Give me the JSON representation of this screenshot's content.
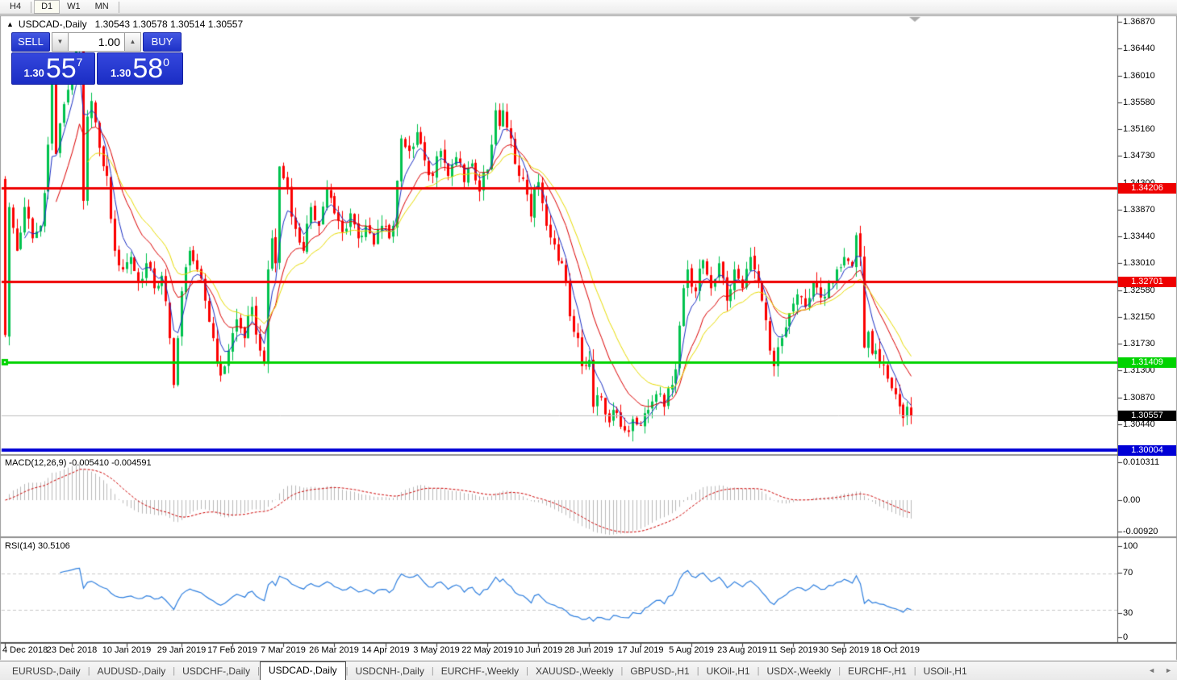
{
  "toolbar": {
    "timeframes": [
      {
        "label": "H4",
        "active": false
      },
      {
        "label": "D1",
        "active": true
      },
      {
        "label": "W1",
        "active": false
      },
      {
        "label": "MN",
        "active": false
      }
    ]
  },
  "chart": {
    "title_symbol": "USDCAD-,Daily",
    "ohlc": "1.30543 1.30578 1.30514 1.30557",
    "trade_panel": {
      "sell_label": "SELL",
      "buy_label": "BUY",
      "volume": "1.00",
      "bid_small": "1.30",
      "bid_big": "55",
      "bid_sup": "7",
      "ask_small": "1.30",
      "ask_big": "58",
      "ask_sup": "0"
    }
  },
  "chart_data": {
    "type": "candlestick",
    "title": "USDCAD-,Daily",
    "bars": 232,
    "first_open": 1.3435,
    "close_anchors": [
      [
        0,
        1.3185
      ],
      [
        1,
        1.339
      ],
      [
        3,
        1.332
      ],
      [
        5,
        1.339
      ],
      [
        7,
        1.334
      ],
      [
        9,
        1.336
      ],
      [
        11,
        1.349
      ],
      [
        12,
        1.359
      ],
      [
        13,
        1.3475
      ],
      [
        15,
        1.3555
      ],
      [
        17,
        1.3605
      ],
      [
        19,
        1.3655
      ],
      [
        20,
        1.34
      ],
      [
        21,
        1.3535
      ],
      [
        22,
        1.356
      ],
      [
        24,
        1.3485
      ],
      [
        26,
        1.344
      ],
      [
        28,
        1.332
      ],
      [
        30,
        1.329
      ],
      [
        32,
        1.331
      ],
      [
        34,
        1.327
      ],
      [
        36,
        1.33
      ],
      [
        38,
        1.326
      ],
      [
        40,
        1.328
      ],
      [
        42,
        1.318
      ],
      [
        43,
        1.3105
      ],
      [
        45,
        1.3255
      ],
      [
        47,
        1.332
      ],
      [
        49,
        1.329
      ],
      [
        51,
        1.324
      ],
      [
        53,
        1.318
      ],
      [
        55,
        1.312
      ],
      [
        57,
        1.316
      ],
      [
        59,
        1.321
      ],
      [
        61,
        1.318
      ],
      [
        63,
        1.323
      ],
      [
        65,
        1.316
      ],
      [
        66,
        1.314
      ],
      [
        67,
        1.329
      ],
      [
        68,
        1.334
      ],
      [
        69,
        1.33
      ],
      [
        70,
        1.3455
      ],
      [
        72,
        1.342
      ],
      [
        74,
        1.3355
      ],
      [
        76,
        1.332
      ],
      [
        78,
        1.339
      ],
      [
        80,
        1.336
      ],
      [
        82,
        1.342
      ],
      [
        84,
        1.338
      ],
      [
        86,
        1.335
      ],
      [
        88,
        1.338
      ],
      [
        90,
        1.334
      ],
      [
        92,
        1.336
      ],
      [
        94,
        1.333
      ],
      [
        96,
        1.336
      ],
      [
        98,
        1.334
      ],
      [
        99,
        1.336
      ],
      [
        101,
        1.35
      ],
      [
        103,
        1.348
      ],
      [
        105,
        1.351
      ],
      [
        107,
        1.3465
      ],
      [
        109,
        1.344
      ],
      [
        111,
        1.348
      ],
      [
        113,
        1.344
      ],
      [
        115,
        1.347
      ],
      [
        117,
        1.343
      ],
      [
        119,
        1.346
      ],
      [
        121,
        1.3415
      ],
      [
        123,
        1.345
      ],
      [
        124,
        1.349
      ],
      [
        125,
        1.3545
      ],
      [
        126,
        1.352
      ],
      [
        127,
        1.3545
      ],
      [
        129,
        1.35
      ],
      [
        131,
        1.344
      ],
      [
        133,
        1.341
      ],
      [
        134,
        1.3375
      ],
      [
        135,
        1.342
      ],
      [
        136,
        1.343
      ],
      [
        138,
        1.336
      ],
      [
        140,
        1.333
      ],
      [
        142,
        1.33
      ],
      [
        144,
        1.3215
      ],
      [
        146,
        1.318
      ],
      [
        147,
        1.3135
      ],
      [
        149,
        1.3145
      ],
      [
        150,
        1.307
      ],
      [
        152,
        1.3085
      ],
      [
        154,
        1.3045
      ],
      [
        156,
        1.306
      ],
      [
        158,
        1.3032
      ],
      [
        160,
        1.305
      ],
      [
        162,
        1.304
      ],
      [
        164,
        1.3065
      ],
      [
        166,
        1.309
      ],
      [
        168,
        1.307
      ],
      [
        170,
        1.3105
      ],
      [
        171,
        1.313
      ],
      [
        172,
        1.32
      ],
      [
        173,
        1.326
      ],
      [
        174,
        1.329
      ],
      [
        176,
        1.3255
      ],
      [
        178,
        1.3305
      ],
      [
        180,
        1.326
      ],
      [
        182,
        1.33
      ],
      [
        184,
        1.324
      ],
      [
        186,
        1.329
      ],
      [
        188,
        1.326
      ],
      [
        190,
        1.331
      ],
      [
        191,
        1.329
      ],
      [
        193,
        1.324
      ],
      [
        195,
        1.316
      ],
      [
        196,
        1.3135
      ],
      [
        198,
        1.318
      ],
      [
        200,
        1.322
      ],
      [
        202,
        1.325
      ],
      [
        204,
        1.323
      ],
      [
        206,
        1.327
      ],
      [
        208,
        1.3245
      ],
      [
        210,
        1.327
      ],
      [
        212,
        1.329
      ],
      [
        214,
        1.331
      ],
      [
        216,
        1.3295
      ],
      [
        217,
        1.3345
      ],
      [
        218,
        1.331
      ],
      [
        219,
        1.3165
      ],
      [
        220,
        1.319
      ],
      [
        221,
        1.3155
      ],
      [
        223,
        1.314
      ],
      [
        225,
        1.3115
      ],
      [
        227,
        1.309
      ],
      [
        229,
        1.3052
      ],
      [
        230,
        1.307
      ],
      [
        231,
        1.30557
      ]
    ],
    "current_price": 1.30557,
    "current_price_label": "1.30557",
    "ohlc_display": {
      "open": "1.30543",
      "high": "1.30578",
      "low": "1.30514",
      "close": "1.30557"
    },
    "y_axis": {
      "top_value": 1.3687,
      "tick_step": 0.0043,
      "tick_labels": [
        "1.36870",
        "1.36440",
        "1.36010",
        "1.35580",
        "1.35160",
        "1.34730",
        "1.34300",
        "1.33870",
        "1.33440",
        "1.33010",
        "1.32580",
        "1.32150",
        "1.31730",
        "1.31300",
        "1.30870",
        "1.30440"
      ]
    },
    "x_axis": {
      "labels": [
        "4 Dec 2018",
        "23 Dec 2018",
        "10 Jan 2019",
        "29 Jan 2019",
        "17 Feb 2019",
        "7 Mar 2019",
        "26 Mar 2019",
        "14 Apr 2019",
        "3 May 2019",
        "22 May 2019",
        "10 Jun 2019",
        "28 Jun 2019",
        "17 Jul 2019",
        "5 Aug 2019",
        "23 Aug 2019",
        "11 Sep 2019",
        "30 Sep 2019",
        "18 Oct 2019"
      ],
      "label_bar_indices": [
        0,
        17,
        31,
        45,
        58,
        71,
        84,
        97,
        110,
        123,
        136,
        149,
        162,
        175,
        188,
        201,
        214,
        227
      ]
    },
    "levels": [
      {
        "price": 1.34206,
        "label": "1.34206",
        "color": "#ee0000",
        "width": 3,
        "anchor_marker": false
      },
      {
        "price": 1.32701,
        "label": "1.32701",
        "color": "#ee0000",
        "width": 3,
        "anchor_marker": false
      },
      {
        "price": 1.31409,
        "label": "1.31409",
        "color": "#00d300",
        "width": 3,
        "anchor_marker": true
      },
      {
        "price": 1.30004,
        "label": "1.30004",
        "color": "#0000d6",
        "width": 4,
        "anchor_marker": false
      }
    ],
    "moving_averages": [
      {
        "period": 5,
        "color": "#1a2fc4"
      },
      {
        "period": 13,
        "color": "#dc0000"
      },
      {
        "period": 21,
        "color": "#e8dc00"
      }
    ],
    "candle_colors": {
      "up": "#00c24e",
      "down": "#fb0000"
    },
    "macd": {
      "params": "MACD(12,26,9)",
      "fast": 12,
      "slow": 26,
      "signal": 9,
      "display_values": "-0.005410 -0.004591",
      "axis_labels": [
        "0.010311",
        "0.00",
        "-0.00920"
      ],
      "axis_values": [
        0.010311,
        0,
        -0.0092
      ],
      "histogram_color": "#b9b9b9",
      "signal_color": "#ce0000"
    },
    "rsi": {
      "params": "RSI(14)",
      "period": 14,
      "display_value": "30.5106",
      "axis_labels": [
        "100",
        "70",
        "30",
        "0"
      ],
      "axis_values": [
        100,
        70,
        30,
        0
      ],
      "guide_levels": [
        70,
        30
      ],
      "color": "#2e7fdf"
    }
  },
  "tab_bar": {
    "items": [
      "EURUSD-,Daily",
      "AUDUSD-,Daily",
      "USDCHF-,Daily",
      "USDCAD-,Daily",
      "USDCNH-,Daily",
      "EURCHF-,Weekly",
      "XAUUSD-,Weekly",
      "GBPUSD-,H1",
      "UKOil-,H1",
      "USDX-,Weekly",
      "EURCHF-,H1",
      "USOil-,H1"
    ],
    "active_index": 3,
    "nav_left": "◄",
    "nav_right": "►"
  }
}
